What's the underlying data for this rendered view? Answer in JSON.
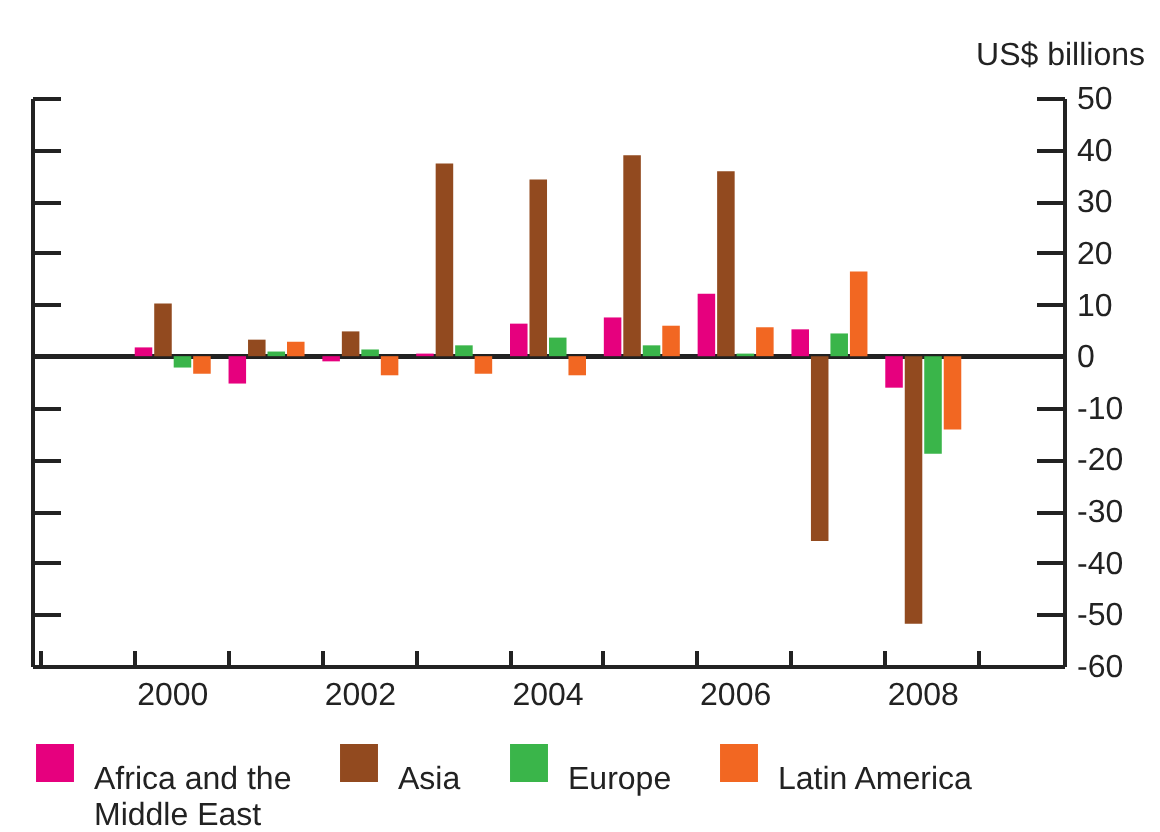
{
  "chart_data": {
    "type": "bar",
    "ylabel": "US$ billions",
    "categories": [
      null,
      "2000",
      null,
      "2002",
      null,
      "2004",
      null,
      "2006",
      null,
      "2008",
      null
    ],
    "series": [
      {
        "name": "Africa and the Middle East",
        "color": "#e6007e",
        "values": [
          null,
          1.7,
          -5.3,
          -1.0,
          0.5,
          6.3,
          7.5,
          12.1,
          5.2,
          -6.1,
          null
        ]
      },
      {
        "name": "Asia",
        "color": "#924a1f",
        "values": [
          null,
          10.2,
          3.2,
          4.8,
          37.3,
          34.2,
          38.9,
          35.8,
          -35.8,
          -51.8,
          null
        ]
      },
      {
        "name": "Europe",
        "color": "#3ab54a",
        "values": [
          null,
          -2.2,
          0.9,
          1.3,
          2.1,
          3.6,
          2.1,
          0.5,
          4.4,
          -18.9,
          null
        ]
      },
      {
        "name": "Latin America",
        "color": "#f26722",
        "values": [
          null,
          -3.4,
          2.8,
          -3.7,
          -3.4,
          -3.7,
          5.9,
          5.6,
          16.4,
          -14.2,
          null
        ]
      }
    ],
    "ylim": [
      -60,
      50
    ],
    "yticks": [
      -60,
      -50,
      -40,
      -30,
      -20,
      -10,
      0,
      10,
      20,
      30,
      40,
      50
    ],
    "legend": "bottom"
  }
}
